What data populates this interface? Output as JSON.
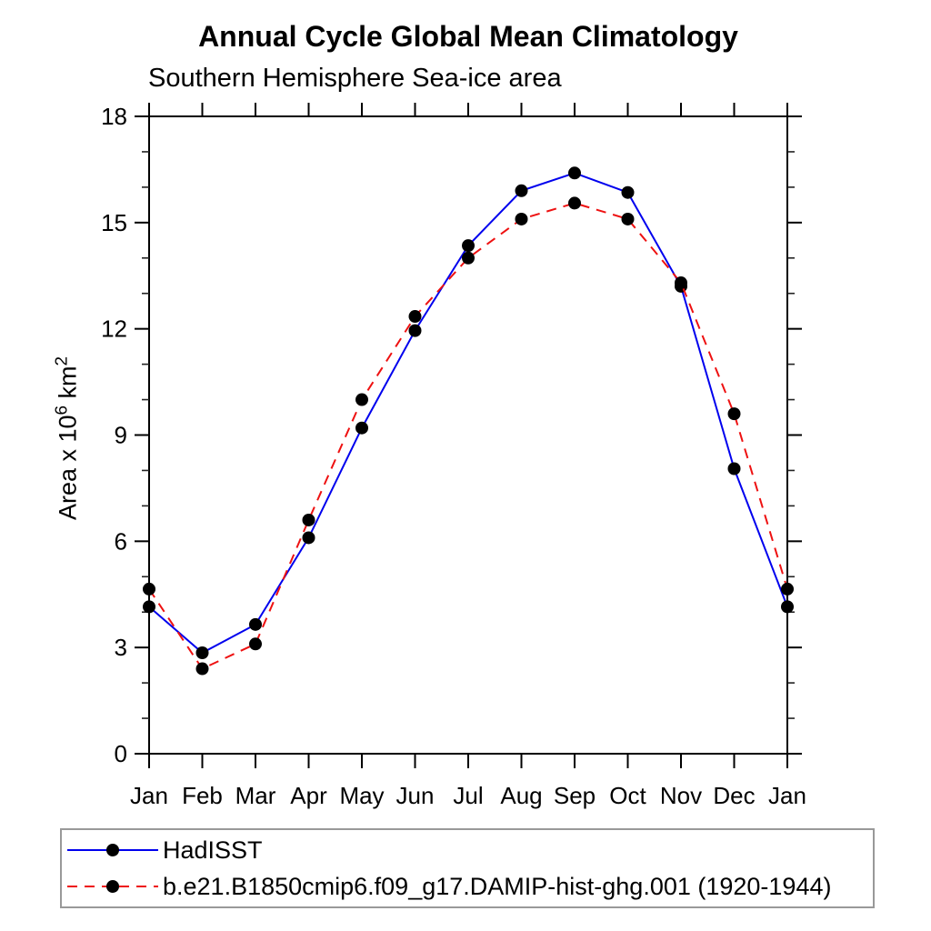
{
  "chart_data": {
    "type": "line",
    "title": "Annual Cycle Global Mean Climatology",
    "subtitle": "Southern Hemisphere Sea-ice area",
    "ylabel": "Area x 10^6 km^2",
    "ylabel_parts": {
      "prefix": "Area x 10",
      "sup1": "6",
      "mid": " km",
      "sup2": "2"
    },
    "categories": [
      "Jan",
      "Feb",
      "Mar",
      "Apr",
      "May",
      "Jun",
      "Jul",
      "Aug",
      "Sep",
      "Oct",
      "Nov",
      "Dec",
      "Jan"
    ],
    "ylim": [
      0,
      18
    ],
    "ytick_major": [
      0,
      3,
      6,
      9,
      12,
      15,
      18
    ],
    "ytick_minor_step": 1,
    "grid": false,
    "legend_position": "bottom",
    "axis_color": "#000000",
    "marker_color": "#000000",
    "series": [
      {
        "name": "HadISST",
        "color": "#0000ee",
        "style": "solid",
        "values": [
          4.15,
          2.85,
          3.65,
          6.1,
          9.2,
          11.95,
          14.35,
          15.9,
          16.4,
          15.85,
          13.2,
          8.05,
          4.15
        ]
      },
      {
        "name": "b.e21.B1850cmip6.f09_g17.DAMIP-hist-ghg.001 (1920-1944)",
        "color": "#ee1111",
        "style": "dashed",
        "values": [
          4.65,
          2.4,
          3.1,
          6.6,
          10.0,
          12.35,
          14.0,
          15.1,
          15.55,
          15.1,
          13.3,
          9.6,
          4.65
        ]
      }
    ]
  }
}
